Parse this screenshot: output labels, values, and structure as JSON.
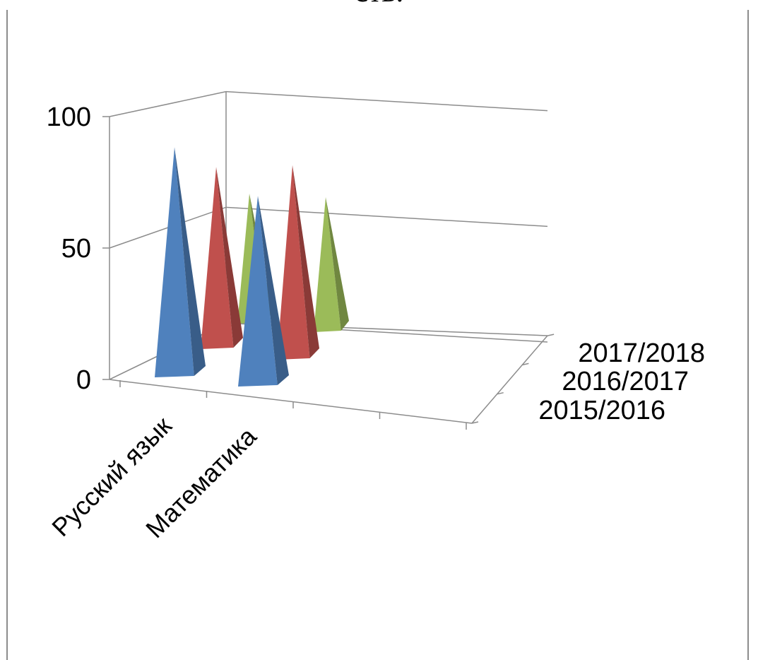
{
  "chart_title": "сть.",
  "chart_data": {
    "type": "bar",
    "title": "сть.",
    "categories": [
      "Русский язык",
      "Математика"
    ],
    "series": [
      {
        "name": "2015/2016",
        "values": [
          87,
          72
        ],
        "color": "#4f81bd"
      },
      {
        "name": "2016/2017",
        "values": [
          72,
          77
        ],
        "color": "#c0504d"
      },
      {
        "name": "2017/2018",
        "values": [
          52,
          54
        ],
        "color": "#9bbb59"
      }
    ],
    "yticks": [
      0,
      50,
      100
    ],
    "ylim": [
      0,
      100
    ],
    "xlabel": "",
    "ylabel": "",
    "shape": "pyramid",
    "grid": true,
    "legend": "none"
  }
}
